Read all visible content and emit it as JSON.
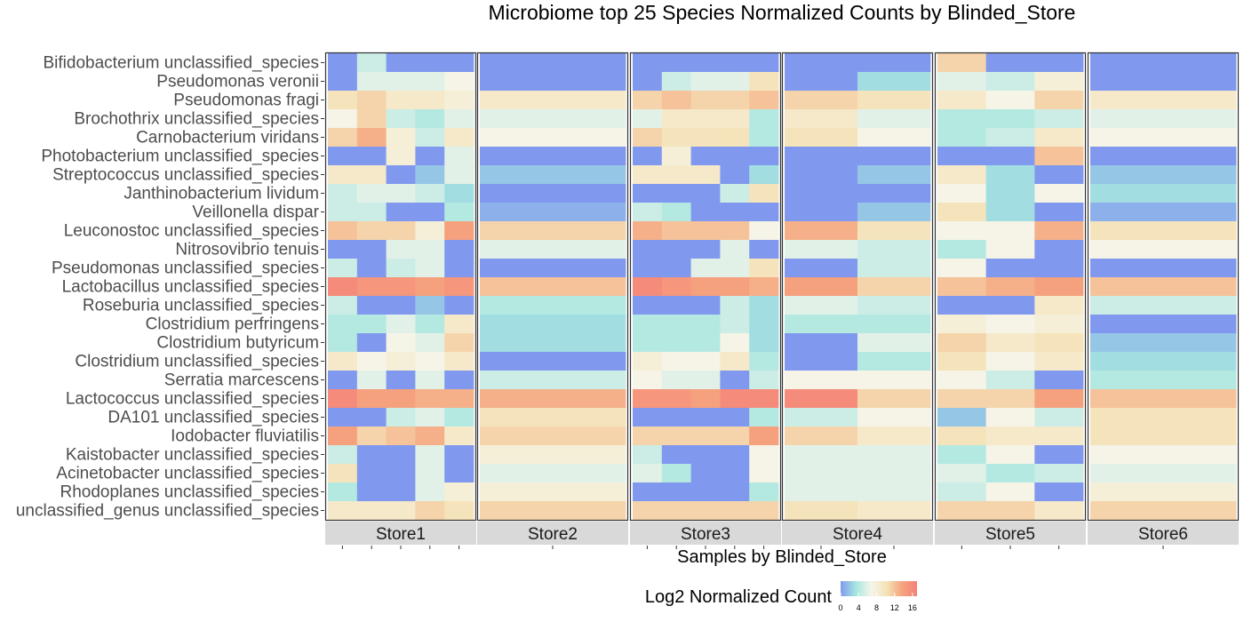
{
  "chart_data": {
    "type": "heatmap",
    "title": "Microbiome top 25 Species Normalized Counts by Blinded_Store",
    "xlabel": "Samples by Blinded_Store",
    "ylabel": "",
    "legend": {
      "title": "Log2 Normalized Count",
      "ticks": [
        0,
        4,
        8,
        12,
        16
      ],
      "range": [
        0,
        17
      ],
      "colors": [
        "#8099ee",
        "#a6e6e0",
        "#f5f5ea",
        "#f5e3b8",
        "#f5a57f",
        "#f5807a"
      ],
      "placement": "bottom"
    },
    "species": [
      "Bifidobacterium unclassified_species",
      "Pseudomonas veronii",
      "Pseudomonas fragi",
      "Brochothrix unclassified_species",
      "Carnobacterium viridans",
      "Photobacterium unclassified_species",
      "Streptococcus unclassified_species",
      "Janthinobacterium lividum",
      "Veillonella dispar",
      "Leuconostoc unclassified_species",
      "Nitrosovibrio tenuis",
      "Pseudomonas unclassified_species",
      "Lactobacillus unclassified_species",
      "Roseburia unclassified_species",
      "Clostridium perfringens",
      "Clostridium butyricum",
      "Clostridium unclassified_species",
      "Serratia marcescens",
      "Lactococcus unclassified_species",
      "DA101 unclassified_species",
      "Iodobacter fluviatilis",
      "Kaistobacter unclassified_species",
      "Acinetobacter unclassified_species",
      "Rhodoplanes unclassified_species",
      "unclassified_genus unclassified_species"
    ],
    "stores": [
      {
        "name": "Store1",
        "samples": 5,
        "values": [
          [
            0,
            5,
            0,
            0,
            0
          ],
          [
            0,
            6,
            6,
            6,
            7
          ],
          [
            10,
            11,
            9,
            9,
            8
          ],
          [
            7,
            11,
            5,
            4,
            6
          ],
          [
            11,
            13,
            8,
            5,
            9
          ],
          [
            0,
            0,
            8,
            0,
            6
          ],
          [
            9,
            9,
            0,
            2,
            6
          ],
          [
            5,
            6,
            6,
            5,
            3
          ],
          [
            5,
            5,
            0,
            0,
            4
          ],
          [
            12,
            11,
            11,
            8,
            14
          ],
          [
            0,
            0,
            6,
            6,
            0
          ],
          [
            5,
            0,
            5,
            6,
            0
          ],
          [
            16,
            15,
            15,
            14,
            15
          ],
          [
            5,
            0,
            0,
            2,
            0
          ],
          [
            4,
            4,
            6,
            4,
            9
          ],
          [
            4,
            0,
            7,
            6,
            11
          ],
          [
            9,
            7,
            8,
            7,
            9
          ],
          [
            0,
            6,
            0,
            6,
            0
          ],
          [
            16,
            14,
            14,
            13,
            13
          ],
          [
            0,
            0,
            5,
            6,
            4
          ],
          [
            14,
            11,
            12,
            13,
            9
          ],
          [
            5,
            0,
            0,
            6,
            0
          ],
          [
            10,
            0,
            0,
            6,
            0
          ],
          [
            4,
            0,
            0,
            6,
            8
          ],
          [
            9,
            9,
            9,
            11,
            10
          ]
        ]
      },
      {
        "name": "Store2",
        "samples": 1,
        "values": [
          [
            0
          ],
          [
            0
          ],
          [
            9
          ],
          [
            6
          ],
          [
            7
          ],
          [
            0
          ],
          [
            2
          ],
          [
            0
          ],
          [
            1
          ],
          [
            11
          ],
          [
            6
          ],
          [
            0
          ],
          [
            12
          ],
          [
            4
          ],
          [
            3
          ],
          [
            3
          ],
          [
            0
          ],
          [
            5
          ],
          [
            13
          ],
          [
            10
          ],
          [
            11
          ],
          [
            8
          ],
          [
            6
          ],
          [
            8
          ],
          [
            11
          ]
        ]
      },
      {
        "name": "Store3",
        "samples": 5,
        "values": [
          [
            0,
            0,
            0,
            0,
            0
          ],
          [
            0,
            5,
            6,
            6,
            10
          ],
          [
            11,
            12,
            11,
            11,
            12
          ],
          [
            6,
            9,
            9,
            9,
            4
          ],
          [
            11,
            10,
            10,
            10,
            4
          ],
          [
            0,
            8,
            0,
            0,
            0
          ],
          [
            9,
            9,
            9,
            0,
            3
          ],
          [
            0,
            0,
            0,
            5,
            10
          ],
          [
            5,
            4,
            0,
            0,
            0
          ],
          [
            13,
            12,
            12,
            12,
            7
          ],
          [
            0,
            0,
            0,
            6,
            0
          ],
          [
            0,
            0,
            6,
            6,
            10
          ],
          [
            16,
            15,
            14,
            14,
            13
          ],
          [
            0,
            0,
            0,
            5,
            3
          ],
          [
            4,
            4,
            4,
            5,
            3
          ],
          [
            4,
            4,
            4,
            7,
            3
          ],
          [
            8,
            7,
            7,
            9,
            4
          ],
          [
            7,
            6,
            6,
            0,
            5
          ],
          [
            15,
            15,
            14,
            16,
            16
          ],
          [
            0,
            0,
            0,
            0,
            4
          ],
          [
            11,
            11,
            11,
            11,
            14
          ],
          [
            5,
            0,
            0,
            0,
            7
          ],
          [
            6,
            4,
            0,
            0,
            7
          ],
          [
            0,
            0,
            0,
            0,
            4
          ],
          [
            11,
            11,
            11,
            11,
            11
          ]
        ]
      },
      {
        "name": "Store4",
        "samples": 2,
        "values": [
          [
            0,
            0
          ],
          [
            0,
            3
          ],
          [
            11,
            10
          ],
          [
            9,
            6
          ],
          [
            10,
            7
          ],
          [
            0,
            0
          ],
          [
            0,
            2
          ],
          [
            0,
            0
          ],
          [
            0,
            2
          ],
          [
            13,
            10
          ],
          [
            6,
            5
          ],
          [
            0,
            5
          ],
          [
            14,
            11
          ],
          [
            6,
            5
          ],
          [
            4,
            4
          ],
          [
            0,
            6
          ],
          [
            0,
            4
          ],
          [
            7,
            7
          ],
          [
            16,
            11
          ],
          [
            5,
            7
          ],
          [
            11,
            9
          ],
          [
            6,
            6
          ],
          [
            6,
            6
          ],
          [
            6,
            6
          ],
          [
            10,
            9
          ]
        ]
      },
      {
        "name": "Store5",
        "samples": 3,
        "values": [
          [
            11,
            0,
            0
          ],
          [
            6,
            5,
            8
          ],
          [
            9,
            7,
            11
          ],
          [
            4,
            4,
            5
          ],
          [
            4,
            5,
            9
          ],
          [
            0,
            0,
            12
          ],
          [
            9,
            3,
            0
          ],
          [
            7,
            3,
            7
          ],
          [
            10,
            3,
            0
          ],
          [
            7,
            7,
            13
          ],
          [
            4,
            7,
            0
          ],
          [
            7,
            0,
            0
          ],
          [
            12,
            13,
            14
          ],
          [
            0,
            0,
            9
          ],
          [
            8,
            7,
            8
          ],
          [
            11,
            9,
            10
          ],
          [
            10,
            7,
            9
          ],
          [
            7,
            5,
            0
          ],
          [
            11,
            11,
            14
          ],
          [
            2,
            7,
            5
          ],
          [
            10,
            9,
            9
          ],
          [
            4,
            7,
            0
          ],
          [
            6,
            4,
            5
          ],
          [
            5,
            7,
            0
          ],
          [
            11,
            11,
            9
          ]
        ]
      },
      {
        "name": "Store6",
        "samples": 1,
        "values": [
          [
            0
          ],
          [
            0
          ],
          [
            9
          ],
          [
            6
          ],
          [
            7
          ],
          [
            0
          ],
          [
            2
          ],
          [
            3
          ],
          [
            1
          ],
          [
            10
          ],
          [
            7
          ],
          [
            0
          ],
          [
            12
          ],
          [
            5
          ],
          [
            0
          ],
          [
            2
          ],
          [
            3
          ],
          [
            4
          ],
          [
            12
          ],
          [
            10
          ],
          [
            10
          ],
          [
            7
          ],
          [
            6
          ],
          [
            8
          ],
          [
            11
          ]
        ]
      }
    ]
  }
}
